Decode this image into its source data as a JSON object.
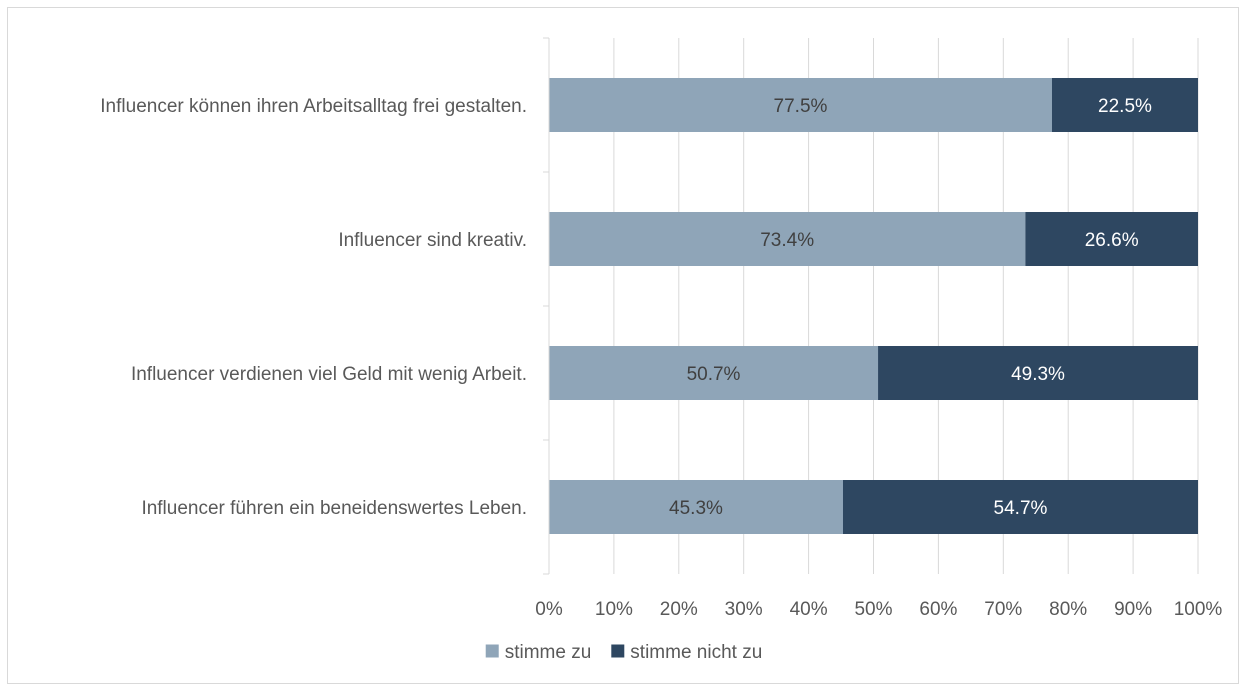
{
  "chart_data": {
    "type": "bar",
    "orientation": "horizontal",
    "stacked": true,
    "categories": [
      "Influencer können ihren Arbeitsalltag frei gestalten.",
      "Influencer sind kreativ.",
      "Influencer verdienen viel Geld mit wenig Arbeit.",
      "Influencer führen ein beneidenswertes Leben."
    ],
    "series": [
      {
        "name": "stimme zu",
        "color": "#8fa5b8",
        "label_color": "#404040",
        "values": [
          77.5,
          73.4,
          50.7,
          45.3
        ],
        "labels": [
          "77.5%",
          "73.4%",
          "50.7%",
          "45.3%"
        ]
      },
      {
        "name": "stimme nicht zu",
        "color": "#2e4761",
        "label_color": "#ffffff",
        "values": [
          22.5,
          26.6,
          49.3,
          54.7
        ],
        "labels": [
          "22.5%",
          "26.6%",
          "49.3%",
          "54.7%"
        ]
      }
    ],
    "x_ticks": [
      "0%",
      "10%",
      "20%",
      "30%",
      "40%",
      "50%",
      "60%",
      "70%",
      "80%",
      "90%",
      "100%"
    ],
    "xlim": [
      0,
      100
    ],
    "grid": true,
    "legend": "bottom",
    "title": "",
    "xlabel": "",
    "ylabel": ""
  }
}
